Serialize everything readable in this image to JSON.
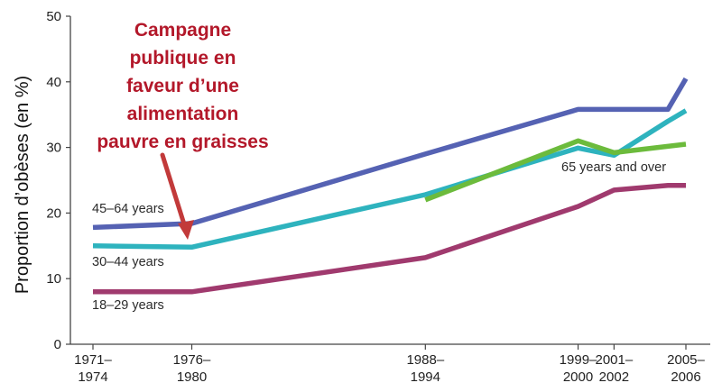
{
  "chart_data": {
    "type": "line",
    "ylabel": "Proportion d’obèses (en %)",
    "ylim": [
      0,
      50
    ],
    "yticks": [
      "0",
      "10",
      "20",
      "30",
      "40",
      "50"
    ],
    "x_ticks": [
      {
        "x": 1972.5,
        "lines": [
          "1971–",
          "1974"
        ]
      },
      {
        "x": 1978,
        "lines": [
          "1976–",
          "1980"
        ]
      },
      {
        "x": 1991,
        "lines": [
          "1988–",
          "1994"
        ]
      },
      {
        "x": 1999.5,
        "lines": [
          "1999–",
          "2000"
        ]
      },
      {
        "x": 2001.5,
        "lines": [
          "2001–",
          "2002"
        ]
      },
      {
        "x": 2005.5,
        "lines": [
          "2005–",
          "2006"
        ]
      }
    ],
    "xlim": [
      1972.5,
      2005.5
    ],
    "grid": false,
    "series": [
      {
        "name": "45–64 years",
        "color": "#5562b3",
        "x": [
          1972.5,
          1978,
          1991,
          1999.5,
          2001.5,
          2004.5,
          2005.5
        ],
        "values": [
          17.8,
          18.4,
          29,
          35.8,
          35.8,
          35.8,
          40.5
        ]
      },
      {
        "name": "30–44 years",
        "color": "#2eb3be",
        "x": [
          1972.5,
          1978,
          1991,
          1999.5,
          2001.5,
          2004.5,
          2005.5
        ],
        "values": [
          15,
          14.8,
          22.8,
          29.9,
          28.8,
          34,
          35.6
        ]
      },
      {
        "name": "65 years and over",
        "color": "#6cbb3c",
        "x": [
          1991,
          1999.5,
          2001.5,
          2005.5
        ],
        "values": [
          22,
          31,
          29.2,
          30.5
        ]
      },
      {
        "name": "18–29 years",
        "color": "#a03a6e",
        "x": [
          1972.5,
          1978,
          1991,
          1999.5,
          2001.5,
          2004.5,
          2005.5
        ],
        "values": [
          8,
          8,
          13.2,
          21,
          23.5,
          24.2,
          24.2
        ]
      }
    ],
    "annotation": {
      "lines": [
        "Campagne",
        "publique en",
        "faveur d’une",
        "alimentation",
        "pauvre en graisses"
      ],
      "color": "#b3182a"
    }
  }
}
